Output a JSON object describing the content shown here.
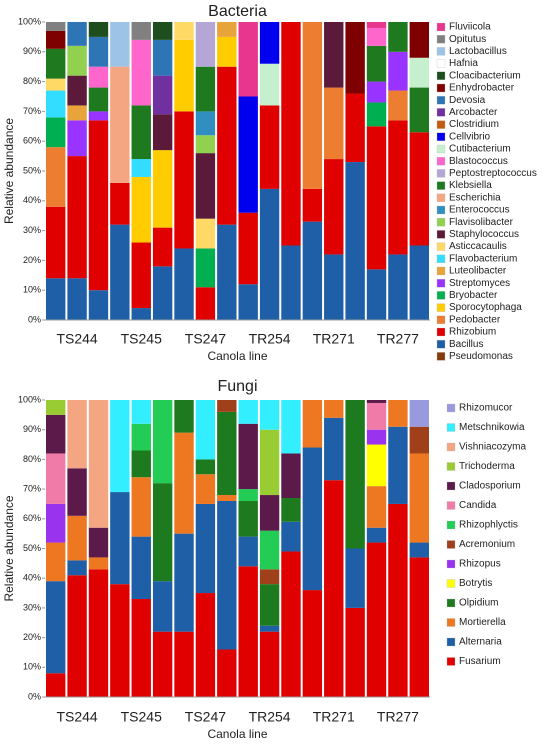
{
  "chart_data": [
    {
      "type": "stacked_bar",
      "title": "Bacteria",
      "x_label": "Canola line",
      "y_label": "Relative abundance",
      "categories": [
        null,
        "TS244",
        null,
        null,
        "TS245",
        null,
        null,
        "TS247",
        null,
        null,
        "TR254",
        null,
        null,
        "TR271",
        null,
        null,
        "TR277",
        null
      ],
      "ylim": [
        0,
        100
      ],
      "yticks": [
        {
          "value": 0,
          "label": "0%"
        },
        {
          "value": 10,
          "label": "10%"
        },
        {
          "value": 20,
          "label": "20%"
        },
        {
          "value": 30,
          "label": "30%"
        },
        {
          "value": 40,
          "label": "40%"
        },
        {
          "value": 50,
          "label": "50%"
        },
        {
          "value": 60,
          "label": "60%"
        },
        {
          "value": 70,
          "label": "70%"
        },
        {
          "value": 80,
          "label": "80%"
        },
        {
          "value": 90,
          "label": "90%"
        },
        {
          "value": 100,
          "label": "100%"
        }
      ],
      "series": [
        {
          "name": "Fluviicola",
          "color": "#e8368f",
          "values": [
            0,
            0,
            0,
            0,
            0,
            0,
            0,
            0,
            0,
            25,
            0,
            0,
            0,
            0,
            0,
            2,
            0,
            0
          ]
        },
        {
          "name": "Opitutus",
          "color": "#808080",
          "values": [
            3,
            0,
            0,
            0,
            6,
            0,
            0,
            0,
            0,
            0,
            0,
            0,
            0,
            0,
            0,
            0,
            0,
            0
          ]
        },
        {
          "name": "Lactobacillus",
          "color": "#9dc3e6",
          "values": [
            0,
            0,
            0,
            15,
            0,
            0,
            0,
            0,
            0,
            0,
            0,
            0,
            0,
            0,
            0,
            0,
            0,
            0
          ]
        },
        {
          "name": "Hafnia",
          "color": "#ffffff",
          "values": [
            0,
            0,
            0,
            0,
            0,
            0,
            0,
            0,
            0,
            0,
            0,
            0,
            0,
            0,
            0,
            0,
            0,
            0
          ]
        },
        {
          "name": "Cloacibacterium",
          "color": "#1e4d1e",
          "values": [
            0,
            0,
            5,
            0,
            0,
            6,
            0,
            0,
            0,
            0,
            0,
            0,
            0,
            0,
            0,
            0,
            0,
            0
          ]
        },
        {
          "name": "Enhydrobacter",
          "color": "#7f0000",
          "values": [
            6,
            0,
            0,
            0,
            0,
            0,
            0,
            0,
            0,
            0,
            0,
            0,
            0,
            0,
            24,
            0,
            0,
            12
          ]
        },
        {
          "name": "Devosia",
          "color": "#2e75b6",
          "values": [
            0,
            8,
            10,
            0,
            0,
            12,
            0,
            0,
            0,
            0,
            0,
            0,
            0,
            0,
            0,
            0,
            0,
            0
          ]
        },
        {
          "name": "Arcobacter",
          "color": "#7030a0",
          "values": [
            0,
            0,
            0,
            0,
            0,
            13,
            0,
            0,
            0,
            0,
            0,
            0,
            0,
            0,
            0,
            0,
            0,
            0
          ]
        },
        {
          "name": "Clostridium",
          "color": "#c55a11",
          "values": [
            0,
            0,
            0,
            0,
            0,
            0,
            0,
            0,
            0,
            0,
            0,
            0,
            0,
            0,
            0,
            0,
            0,
            0
          ]
        },
        {
          "name": "Cellvibrio",
          "color": "#0000ee",
          "values": [
            0,
            0,
            0,
            0,
            0,
            0,
            0,
            0,
            0,
            39,
            14,
            0,
            0,
            0,
            0,
            0,
            0,
            0
          ]
        },
        {
          "name": "Cutibacterium",
          "color": "#c6efce",
          "values": [
            0,
            0,
            0,
            0,
            0,
            0,
            0,
            0,
            0,
            0,
            14,
            0,
            0,
            0,
            0,
            0,
            0,
            10
          ]
        },
        {
          "name": "Blastococcus",
          "color": "#ff66cc",
          "values": [
            0,
            0,
            7,
            0,
            22,
            0,
            0,
            0,
            0,
            0,
            0,
            0,
            0,
            0,
            0,
            6,
            0,
            0
          ]
        },
        {
          "name": "Peptostreptococcus",
          "color": "#b4a7d6",
          "values": [
            0,
            0,
            0,
            0,
            0,
            0,
            0,
            15,
            0,
            0,
            0,
            0,
            0,
            0,
            0,
            0,
            0,
            0
          ]
        },
        {
          "name": "Klebsiella",
          "color": "#1f7a1f",
          "values": [
            10,
            0,
            8,
            0,
            18,
            0,
            0,
            15,
            0,
            0,
            0,
            0,
            0,
            0,
            0,
            12,
            10,
            15
          ]
        },
        {
          "name": "Escherichia",
          "color": "#f4a582",
          "values": [
            0,
            0,
            0,
            39,
            0,
            0,
            0,
            0,
            0,
            0,
            0,
            0,
            0,
            0,
            0,
            0,
            0,
            0
          ]
        },
        {
          "name": "Enterococcus",
          "color": "#2f8fc0",
          "values": [
            0,
            0,
            0,
            0,
            0,
            0,
            0,
            8,
            0,
            0,
            0,
            0,
            0,
            0,
            0,
            0,
            0,
            0
          ]
        },
        {
          "name": "Flavisolibacter",
          "color": "#92d050",
          "values": [
            0,
            10,
            0,
            0,
            0,
            0,
            0,
            6,
            0,
            0,
            0,
            0,
            0,
            0,
            0,
            0,
            0,
            0
          ]
        },
        {
          "name": "Staphylococcus",
          "color": "#5b1a3a",
          "values": [
            0,
            10,
            0,
            0,
            0,
            12,
            0,
            22,
            0,
            0,
            0,
            0,
            0,
            22,
            0,
            0,
            0,
            0
          ]
        },
        {
          "name": "Asticcacaulis",
          "color": "#ffd966",
          "values": [
            4,
            0,
            0,
            0,
            0,
            0,
            6,
            10,
            0,
            0,
            0,
            0,
            0,
            0,
            0,
            0,
            0,
            0
          ]
        },
        {
          "name": "Flavobacterium",
          "color": "#33ddff",
          "values": [
            9,
            0,
            0,
            0,
            6,
            0,
            0,
            0,
            0,
            0,
            0,
            0,
            0,
            0,
            0,
            0,
            0,
            0
          ]
        },
        {
          "name": "Luteolibacter",
          "color": "#e8a33a",
          "values": [
            0,
            5,
            0,
            0,
            0,
            0,
            0,
            0,
            5,
            0,
            0,
            0,
            0,
            0,
            0,
            0,
            0,
            0
          ]
        },
        {
          "name": "Streptomyces",
          "color": "#9933ff",
          "values": [
            0,
            12,
            3,
            0,
            0,
            0,
            0,
            0,
            0,
            0,
            0,
            0,
            0,
            0,
            0,
            7,
            13,
            0
          ]
        },
        {
          "name": "Bryobacter",
          "color": "#00b050",
          "values": [
            10,
            0,
            0,
            0,
            0,
            0,
            0,
            13,
            0,
            0,
            0,
            0,
            0,
            0,
            0,
            8,
            0,
            0
          ]
        },
        {
          "name": "Sporocytophaga",
          "color": "#ffcc00",
          "values": [
            0,
            0,
            0,
            0,
            22,
            26,
            24,
            0,
            10,
            0,
            0,
            0,
            0,
            0,
            0,
            0,
            0,
            0
          ]
        },
        {
          "name": "Pedobacter",
          "color": "#ed7d31",
          "values": [
            20,
            0,
            0,
            0,
            0,
            0,
            0,
            0,
            0,
            0,
            0,
            0,
            56,
            24,
            0,
            0,
            10,
            0
          ]
        },
        {
          "name": "Rhizobium",
          "color": "#e00000",
          "values": [
            24,
            41,
            57,
            14,
            22,
            13,
            46,
            11,
            53,
            24,
            28,
            75,
            11,
            32,
            23,
            48,
            45,
            38
          ]
        },
        {
          "name": "Bacillus",
          "color": "#1f5fa8",
          "values": [
            14,
            14,
            10,
            32,
            4,
            18,
            24,
            0,
            32,
            12,
            44,
            25,
            33,
            22,
            53,
            17,
            22,
            25
          ]
        },
        {
          "name": "Pseudomonas",
          "color": "#843c0c",
          "values": [
            0,
            0,
            0,
            0,
            0,
            0,
            0,
            0,
            0,
            0,
            0,
            0,
            0,
            0,
            0,
            0,
            0,
            0
          ]
        }
      ]
    },
    {
      "type": "stacked_bar",
      "title": "Fungi",
      "x_label": "Canola line",
      "y_label": "Relative abundance",
      "categories": [
        null,
        "TS244",
        null,
        null,
        "TS245",
        null,
        null,
        "TS247",
        null,
        null,
        "TR254",
        null,
        null,
        "TR271",
        null,
        null,
        "TR277",
        null
      ],
      "ylim": [
        0,
        100
      ],
      "yticks": [
        {
          "value": 0,
          "label": "0%"
        },
        {
          "value": 10,
          "label": "10%"
        },
        {
          "value": 20,
          "label": "20%"
        },
        {
          "value": 30,
          "label": "30%"
        },
        {
          "value": 40,
          "label": "40%"
        },
        {
          "value": 50,
          "label": "50%"
        },
        {
          "value": 60,
          "label": "60%"
        },
        {
          "value": 70,
          "label": "70%"
        },
        {
          "value": 80,
          "label": "80%"
        },
        {
          "value": 90,
          "label": "90%"
        },
        {
          "value": 100,
          "label": "100%"
        }
      ],
      "series": [
        {
          "name": "Rhizomucor",
          "color": "#9999dd",
          "values": [
            0,
            0,
            0,
            0,
            0,
            0,
            0,
            0,
            0,
            0,
            0,
            0,
            0,
            0,
            0,
            0,
            0,
            9
          ]
        },
        {
          "name": "Metschnikowia",
          "color": "#33eeff",
          "values": [
            0,
            0,
            0,
            31,
            8,
            0,
            0,
            20,
            0,
            8,
            10,
            18,
            0,
            0,
            0,
            0,
            0,
            0
          ]
        },
        {
          "name": "Vishniacozyma",
          "color": "#f4a582",
          "values": [
            0,
            23,
            43,
            0,
            0,
            0,
            0,
            0,
            0,
            0,
            0,
            0,
            0,
            0,
            0,
            0,
            0,
            0
          ]
        },
        {
          "name": "Trichoderma",
          "color": "#99cc33",
          "values": [
            5,
            0,
            0,
            0,
            0,
            0,
            0,
            0,
            0,
            0,
            22,
            0,
            0,
            0,
            0,
            0,
            0,
            0
          ]
        },
        {
          "name": "Cladosporium",
          "color": "#5b1a4a",
          "values": [
            13,
            16,
            10,
            0,
            0,
            0,
            0,
            0,
            0,
            22,
            12,
            15,
            0,
            0,
            0,
            1,
            0,
            0
          ]
        },
        {
          "name": "Candida",
          "color": "#f07aa8",
          "values": [
            17,
            0,
            0,
            0,
            0,
            0,
            0,
            0,
            0,
            0,
            0,
            0,
            0,
            0,
            0,
            9,
            0,
            0
          ]
        },
        {
          "name": "Rhizophlyctis",
          "color": "#22cc55",
          "values": [
            0,
            0,
            0,
            0,
            9,
            28,
            0,
            0,
            0,
            4,
            13,
            0,
            0,
            0,
            0,
            0,
            0,
            0
          ]
        },
        {
          "name": "Acremonium",
          "color": "#a0401a",
          "values": [
            0,
            0,
            0,
            0,
            0,
            0,
            0,
            0,
            4,
            0,
            5,
            0,
            0,
            0,
            0,
            0,
            0,
            9
          ]
        },
        {
          "name": "Rhizopus",
          "color": "#9933ee",
          "values": [
            13,
            0,
            0,
            0,
            0,
            0,
            0,
            0,
            0,
            0,
            0,
            0,
            0,
            0,
            0,
            5,
            0,
            0
          ]
        },
        {
          "name": "Botrytis",
          "color": "#ffff00",
          "values": [
            0,
            0,
            0,
            0,
            0,
            0,
            0,
            0,
            0,
            0,
            0,
            0,
            0,
            0,
            0,
            14,
            0,
            0
          ]
        },
        {
          "name": "Olpidium",
          "color": "#1e7a1e",
          "values": [
            0,
            0,
            0,
            0,
            9,
            33,
            11,
            5,
            28,
            12,
            14,
            8,
            0,
            0,
            50,
            0,
            0,
            0
          ]
        },
        {
          "name": "Mortierella",
          "color": "#ee7722",
          "values": [
            13,
            15,
            4,
            0,
            20,
            0,
            34,
            10,
            2,
            0,
            0,
            0,
            16,
            6,
            0,
            14,
            9,
            30
          ]
        },
        {
          "name": "Alternaria",
          "color": "#1f5fa8",
          "values": [
            31,
            5,
            0,
            31,
            21,
            17,
            33,
            30,
            50,
            10,
            2,
            10,
            48,
            21,
            20,
            5,
            26,
            5
          ]
        },
        {
          "name": "Fusarium",
          "color": "#e00000",
          "values": [
            8,
            41,
            43,
            38,
            33,
            22,
            22,
            35,
            16,
            44,
            22,
            49,
            36,
            73,
            30,
            52,
            65,
            47
          ]
        }
      ]
    }
  ]
}
